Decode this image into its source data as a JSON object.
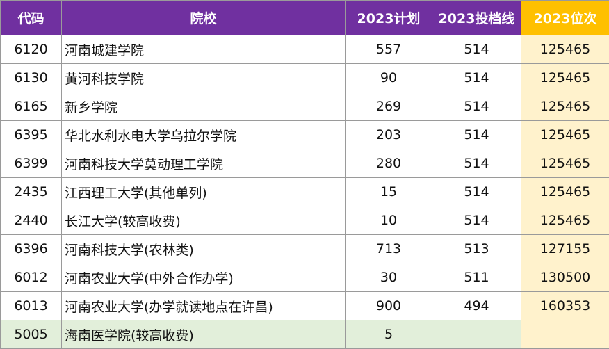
{
  "headers": {
    "code": "代码",
    "school": "院校",
    "plan": "2023计划",
    "score_line": "2023投档线",
    "rank": "2023位次"
  },
  "rows": [
    {
      "code": "6120",
      "school": "河南城建学院",
      "plan": "557",
      "score_line": "514",
      "rank": "125465"
    },
    {
      "code": "6130",
      "school": "黄河科技学院",
      "plan": "90",
      "score_line": "514",
      "rank": "125465"
    },
    {
      "code": "6165",
      "school": "新乡学院",
      "plan": "269",
      "score_line": "514",
      "rank": "125465"
    },
    {
      "code": "6395",
      "school": "华北水利水电大学乌拉尔学院",
      "plan": "203",
      "score_line": "514",
      "rank": "125465"
    },
    {
      "code": "6399",
      "school": "河南科技大学莫动理工学院",
      "plan": "280",
      "score_line": "514",
      "rank": "125465"
    },
    {
      "code": "2435",
      "school": "江西理工大学(其他单列)",
      "plan": "15",
      "score_line": "514",
      "rank": "125465"
    },
    {
      "code": "2440",
      "school": "长江大学(较高收费)",
      "plan": "10",
      "score_line": "514",
      "rank": "125465"
    },
    {
      "code": "6396",
      "school": "河南科技大学(农林类)",
      "plan": "713",
      "score_line": "513",
      "rank": "127155"
    },
    {
      "code": "6012",
      "school": "河南农业大学(中外合作办学)",
      "plan": "30",
      "score_line": "511",
      "rank": "130500"
    },
    {
      "code": "6013",
      "school": "河南农业大学(办学就读地点在许昌)",
      "plan": "900",
      "score_line": "494",
      "rank": "160353"
    },
    {
      "code": "5005",
      "school": "海南医学院(较高收费)",
      "plan": "5",
      "score_line": "",
      "rank": ""
    }
  ],
  "colors": {
    "header_purple": "#7030a0",
    "header_rank_gold": "#ffc000",
    "rank_cell_bg": "#fff2cc",
    "last_row_bg": "#e2efda"
  }
}
